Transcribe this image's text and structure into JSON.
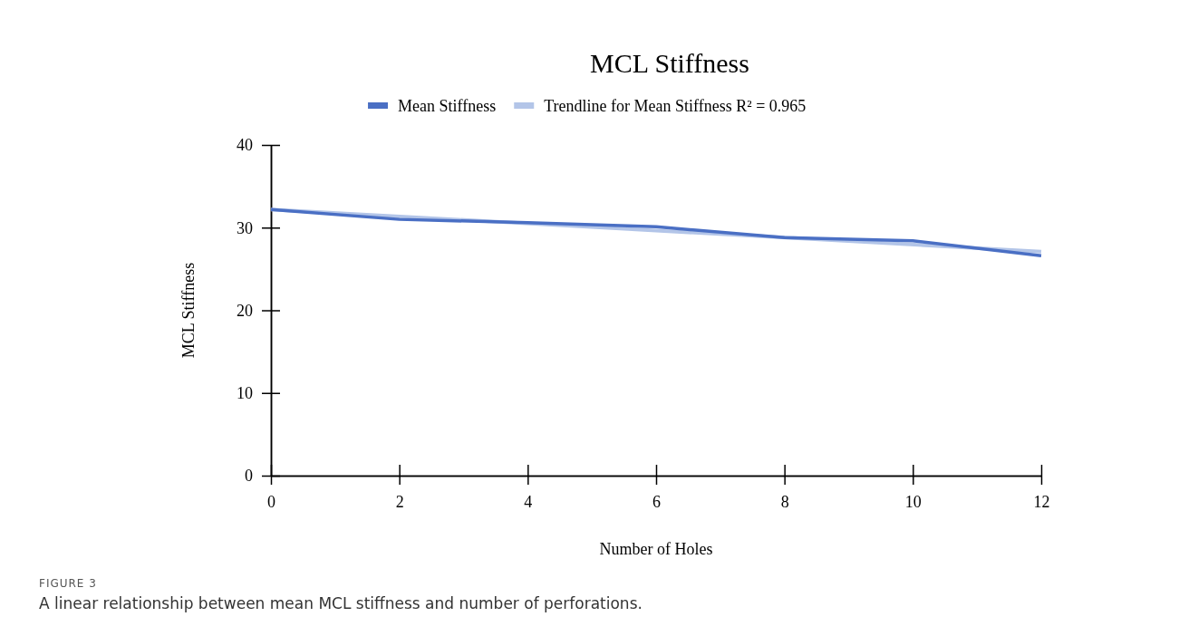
{
  "chart_data": {
    "type": "line",
    "title": "MCL Stiffness",
    "xlabel": "Number of Holes",
    "ylabel": "MCL Stiffness",
    "x": [
      0,
      2,
      4,
      6,
      8,
      10,
      12
    ],
    "series": [
      {
        "name": "Mean Stiffness",
        "color": "#4a6fc4",
        "values": [
          32.2,
          31.0,
          30.6,
          30.1,
          28.8,
          28.4,
          26.6
        ]
      },
      {
        "name": "Trendline for Mean Stiffness R² = 0.965",
        "color": "#b3c5e8",
        "x": [
          0,
          12
        ],
        "values": [
          32.2,
          27.1
        ]
      }
    ],
    "xlim": [
      0,
      12
    ],
    "xticks": [
      0,
      2,
      4,
      6,
      8,
      10,
      12
    ],
    "ylim": [
      0,
      40
    ],
    "yticks": [
      0,
      10,
      20,
      30,
      40
    ],
    "grid": false,
    "legend": "top",
    "marker": "none",
    "line_style": "solid",
    "annotations": [
      "FIGURE 3",
      "A linear relationship between mean MCL stiffness and number of perforations."
    ]
  }
}
